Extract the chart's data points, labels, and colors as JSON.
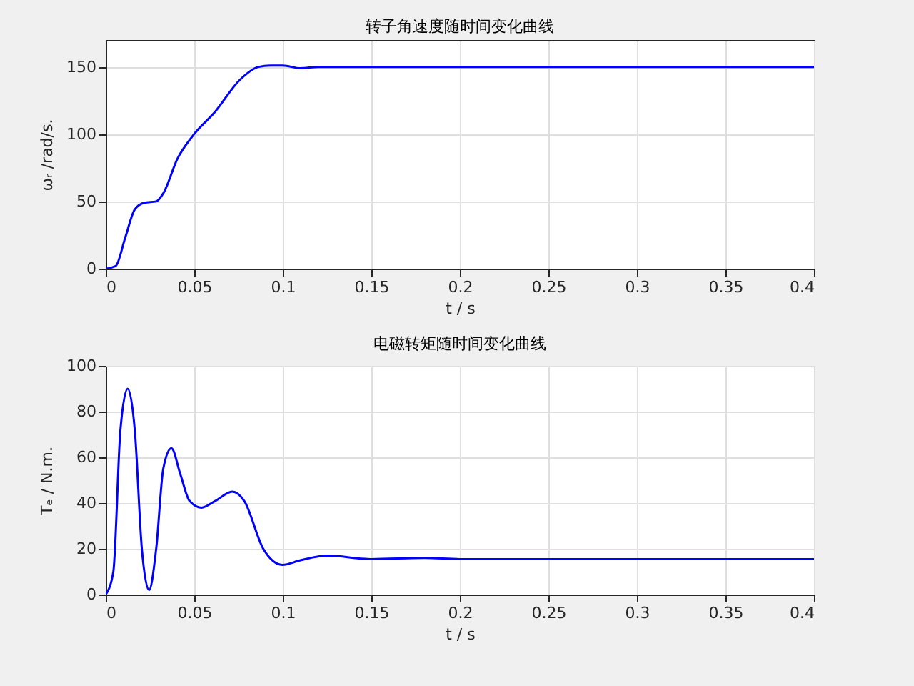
{
  "chart_data": [
    {
      "type": "line",
      "title": "转子角速度随时间变化曲线",
      "xlabel": "t / s",
      "ylabel": "ωᵣ /rad/s.",
      "color": "#0000ff",
      "grid": true,
      "x": [
        0,
        0.0056,
        0.011,
        0.0164,
        0.0218,
        0.0285,
        0.0325,
        0.0406,
        0.0487,
        0.062,
        0.0755,
        0.0863,
        0.093,
        0.1,
        0.11,
        0.12,
        0.13,
        0.15,
        0.2,
        0.25,
        0.3,
        0.35,
        0.4
      ],
      "values": [
        0,
        2,
        23,
        44,
        49,
        50,
        56,
        82,
        98,
        117,
        140,
        150,
        151,
        151,
        149,
        150,
        150,
        150,
        150,
        150,
        150,
        150,
        150
      ],
      "xlim": [
        0,
        0.4
      ],
      "xticks": [
        0,
        0.05,
        0.1,
        0.15,
        0.2,
        0.25,
        0.3,
        0.35,
        0.4
      ],
      "ylim": [
        0,
        170
      ],
      "yticks": [
        0,
        50,
        100,
        150
      ]
    },
    {
      "type": "line",
      "title": "电磁转矩随时间变化曲线",
      "xlabel": "t / s",
      "ylabel": "Tₑ / N.m.",
      "color": "#0000ff",
      "grid": true,
      "x": [
        0,
        0.0043,
        0.0083,
        0.0124,
        0.0164,
        0.0204,
        0.0245,
        0.0285,
        0.0325,
        0.0371,
        0.042,
        0.0473,
        0.054,
        0.062,
        0.0715,
        0.0782,
        0.089,
        0.0998,
        0.11,
        0.125,
        0.15,
        0.18,
        0.2,
        0.25,
        0.3,
        0.35,
        0.4
      ],
      "values": [
        0,
        10,
        72,
        90,
        72,
        20,
        2,
        20,
        55,
        64,
        53,
        41,
        38,
        41,
        45,
        41,
        20,
        13,
        15,
        17,
        15.5,
        16,
        15.5,
        15.5,
        15.5,
        15.5,
        15.5
      ],
      "xlim": [
        0,
        0.4
      ],
      "xticks": [
        0,
        0.05,
        0.1,
        0.15,
        0.2,
        0.25,
        0.3,
        0.35,
        0.4
      ],
      "ylim": [
        0,
        100
      ],
      "yticks": [
        0,
        20,
        40,
        60,
        80,
        100
      ]
    }
  ]
}
